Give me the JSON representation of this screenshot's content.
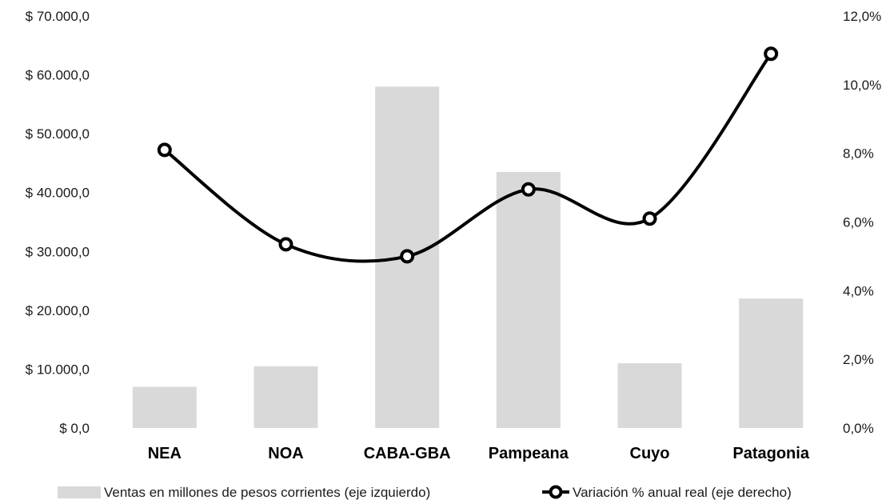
{
  "chart_data": {
    "type": "bar",
    "categories": [
      "NEA",
      "NOA",
      "CABA-GBA",
      "Pampeana",
      "Cuyo",
      "Patagonia"
    ],
    "series": [
      {
        "name": "Ventas en millones de pesos corrientes (eje izquierdo)",
        "type": "bar",
        "axis": "left",
        "color": "#d9d9d9",
        "values": [
          7000,
          10500,
          58000,
          43500,
          11000,
          22000
        ]
      },
      {
        "name": "Variación % anual real (eje derecho)",
        "type": "line",
        "axis": "right",
        "color": "#000000",
        "smooth": true,
        "markers": "circle",
        "values": [
          8.1,
          5.35,
          5.0,
          6.95,
          6.1,
          10.9
        ]
      }
    ],
    "y_left": {
      "ylim": [
        0,
        70000
      ],
      "ticks": [
        0,
        10000,
        20000,
        30000,
        40000,
        50000,
        60000,
        70000
      ],
      "tick_labels": [
        "$ 0,0",
        "$ 10.000,0",
        "$ 20.000,0",
        "$ 30.000,0",
        "$ 40.000,0",
        "$ 50.000,0",
        "$ 60.000,0",
        "$ 70.000,0"
      ]
    },
    "y_right": {
      "ylim": [
        0,
        12
      ],
      "ticks": [
        0,
        2,
        4,
        6,
        8,
        10,
        12
      ],
      "tick_labels": [
        "0,0%",
        "2,0%",
        "4,0%",
        "6,0%",
        "8,0%",
        "10,0%",
        "12,0%"
      ]
    },
    "grid": false,
    "legend_position": "bottom"
  }
}
